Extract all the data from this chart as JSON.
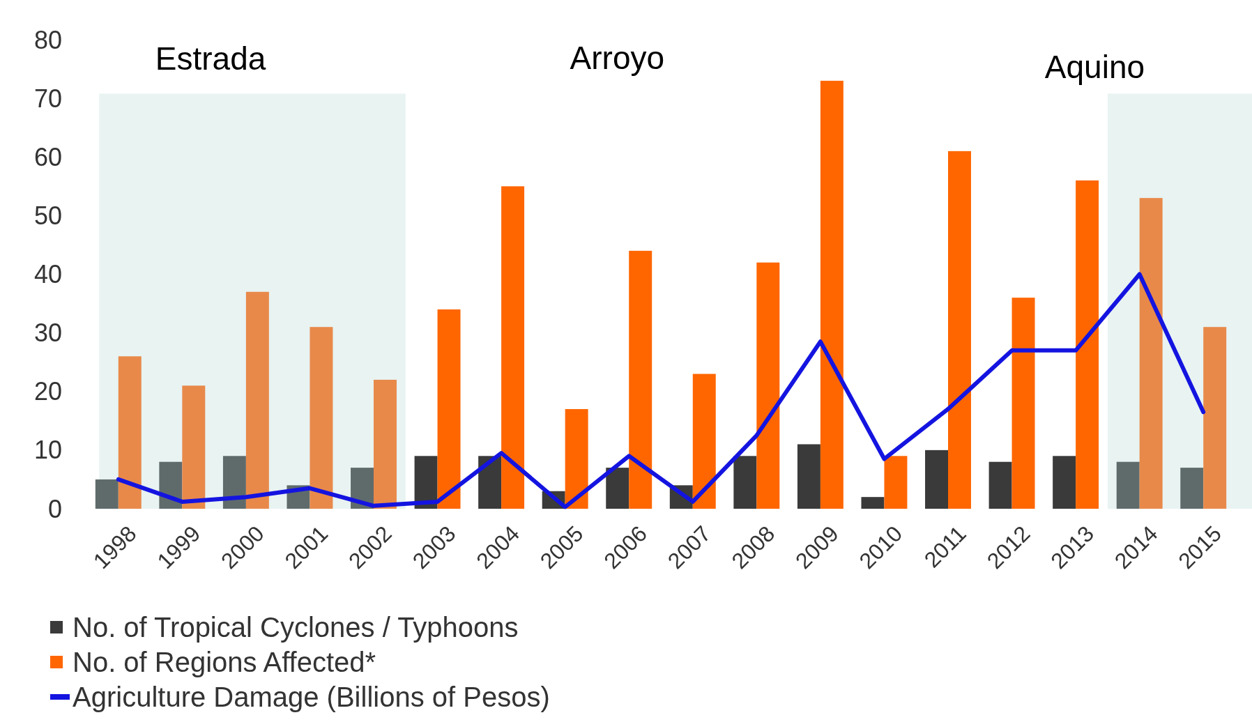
{
  "chart_data": {
    "type": "bar",
    "categories": [
      "1998",
      "1999",
      "2000",
      "2001",
      "2002",
      "2003",
      "2004",
      "2005",
      "2006",
      "2007",
      "2008",
      "2009",
      "2010",
      "2011",
      "2012",
      "2013",
      "2014",
      "2015"
    ],
    "series": [
      {
        "name": "No. of Tropical Cyclones / Typhoons",
        "color": "#3a3a3a",
        "colors": [
          "#5f6b6b",
          "#5f6b6b",
          "#5f6b6b",
          "#5f6b6b",
          "#5f6b6b",
          "#3a3a3a",
          "#3a3a3a",
          "#3a3a3a",
          "#3a3a3a",
          "#3a3a3a",
          "#3a3a3a",
          "#3a3a3a",
          "#3a3a3a",
          "#3a3a3a",
          "#3a3a3a",
          "#3a3a3a",
          "#5f6b6b",
          "#5f6b6b"
        ],
        "values": [
          5,
          8,
          9,
          4,
          7,
          9,
          9,
          3,
          7,
          4,
          9,
          11,
          2,
          10,
          8,
          9,
          8,
          7
        ]
      },
      {
        "name": "No. of Regions Affected*",
        "color": "#ff6600",
        "colors": [
          "#e8894a",
          "#e8894a",
          "#e8894a",
          "#e8894a",
          "#e8894a",
          "#ff6600",
          "#ff6600",
          "#ff6600",
          "#ff6600",
          "#ff6600",
          "#ff6600",
          "#ff6600",
          "#ff6600",
          "#ff6600",
          "#ff6600",
          "#ff6600",
          "#e8894a",
          "#e8894a"
        ],
        "values": [
          26,
          21,
          37,
          31,
          22,
          34,
          55,
          17,
          44,
          23,
          42,
          73,
          9,
          61,
          36,
          56,
          53,
          31
        ]
      },
      {
        "name": "Agriculture Damage (Billions of Pesos)",
        "type": "line",
        "color": "#1414e0",
        "values": [
          5,
          1.2,
          2,
          3.5,
          0.5,
          1.2,
          9.5,
          0.3,
          9,
          1.2,
          12.5,
          28.5,
          8.5,
          17,
          27,
          27,
          40,
          16.5
        ]
      }
    ],
    "ylim": [
      0,
      80
    ],
    "yticks": [
      0,
      10,
      20,
      30,
      40,
      50,
      60,
      70,
      80
    ],
    "bands": [
      {
        "axis": "x",
        "from": "1998",
        "to": "2002",
        "label": "Estrada",
        "color": "#e8f3f2"
      },
      {
        "axis": "x",
        "from": "2014",
        "to": "2015",
        "label": "Aquino",
        "color": "#e8f3f2"
      }
    ],
    "annotations": [
      "Arroyo"
    ],
    "grid": false,
    "legend": "bottom left"
  }
}
